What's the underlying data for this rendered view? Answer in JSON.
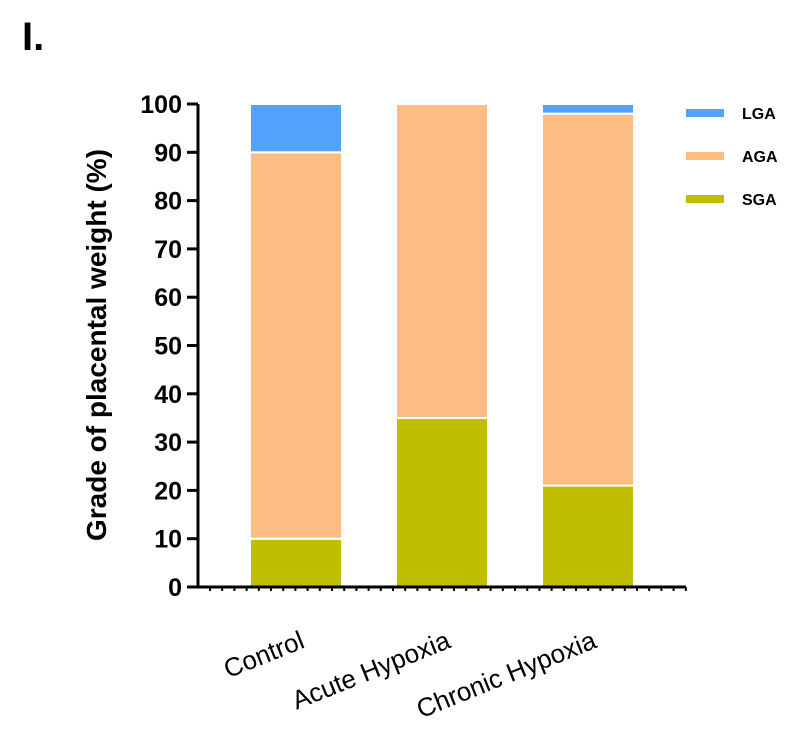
{
  "panel_label": "I.",
  "chart_data": {
    "type": "bar",
    "stacked": true,
    "categories": [
      "Control",
      "Acute Hypoxia",
      "Chronic Hypoxia"
    ],
    "series": [
      {
        "name": "SGA",
        "color": "#c0be00",
        "values": [
          10,
          35,
          21
        ]
      },
      {
        "name": "AGA",
        "color": "#fbbd82",
        "values": [
          80,
          65,
          77
        ]
      },
      {
        "name": "LGA",
        "color": "#55a2fa",
        "values": [
          10,
          0,
          2
        ]
      }
    ],
    "ylabel": "Grade of placental weight (%)",
    "ylim": [
      0,
      100
    ],
    "yticks": [
      0,
      10,
      20,
      30,
      40,
      50,
      60,
      70,
      80,
      90,
      100
    ],
    "legend": {
      "placement": "top-right",
      "order": [
        "LGA",
        "AGA",
        "SGA"
      ]
    },
    "grid": false
  }
}
